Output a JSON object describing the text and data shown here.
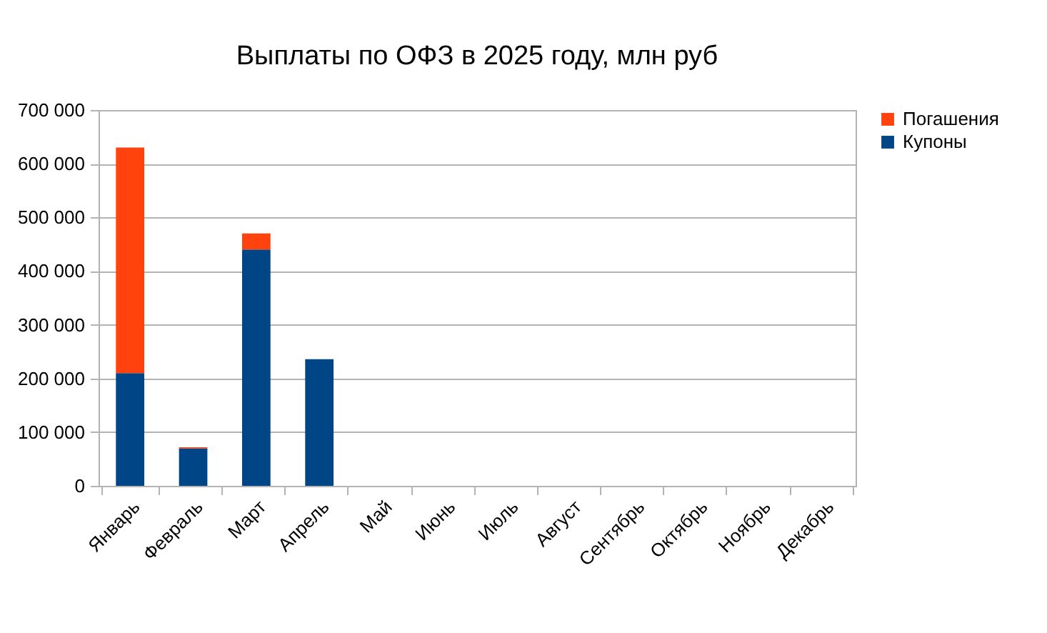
{
  "chart_data": {
    "type": "bar",
    "title": "Выплаты по ОФЗ в 2025 году, млн руб",
    "categories": [
      "Январь",
      "Февраль",
      "Март",
      "Апрель",
      "Май",
      "Июнь",
      "Июль",
      "Август",
      "Сентябрь",
      "Октябрь",
      "Ноябрь",
      "Декабрь"
    ],
    "stacked": true,
    "series": [
      {
        "name": "Купоны",
        "color": "#004586",
        "values": [
          210000,
          70000,
          440000,
          236000,
          0,
          0,
          0,
          0,
          0,
          0,
          0,
          0
        ]
      },
      {
        "name": "Погашения",
        "color": "#ff420e",
        "values": [
          420000,
          2000,
          30000,
          0,
          0,
          0,
          0,
          0,
          0,
          0,
          0,
          0
        ]
      }
    ],
    "ylim": [
      0,
      700000
    ],
    "yticks": [
      0,
      {
        "value": 100000,
        "label": "100 000"
      },
      {
        "value": 200000,
        "label": "200 000"
      },
      {
        "value": 300000,
        "label": "300 000"
      },
      {
        "value": 400000,
        "label": "400 000"
      },
      {
        "value": 500000,
        "label": "500 000"
      },
      {
        "value": 600000,
        "label": "600 000"
      },
      {
        "value": 700000,
        "label": "700 000"
      }
    ],
    "grid": "y",
    "legend": "right"
  }
}
